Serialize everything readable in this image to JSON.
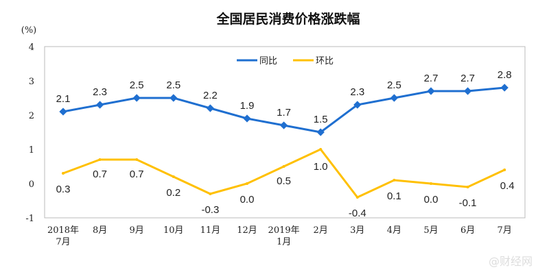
{
  "chart_data": {
    "type": "line",
    "title": "全国居民消费价格涨跌幅",
    "ylabel": "(%)",
    "ylim": [
      -1,
      4
    ],
    "yticks": [
      -1,
      0,
      1,
      2,
      3,
      4
    ],
    "categories": [
      [
        "2018年",
        "7月"
      ],
      [
        "8月"
      ],
      [
        "9月"
      ],
      [
        "10月"
      ],
      [
        "11月"
      ],
      [
        "12月"
      ],
      [
        "2019年",
        "1月"
      ],
      [
        "2月"
      ],
      [
        "3月"
      ],
      [
        "4月"
      ],
      [
        "5月"
      ],
      [
        "6月"
      ],
      [
        "7月"
      ]
    ],
    "series": [
      {
        "name": "同比",
        "color": "#1f6fd0",
        "values": [
          2.1,
          2.3,
          2.5,
          2.5,
          2.2,
          1.9,
          1.7,
          1.5,
          2.3,
          2.5,
          2.7,
          2.7,
          2.8
        ],
        "labels": [
          "2.1",
          "2.3",
          "2.5",
          "2.5",
          "2.2",
          "1.9",
          "1.7",
          "1.5",
          "2.3",
          "2.5",
          "2.7",
          "2.7",
          "2.8"
        ]
      },
      {
        "name": "环比",
        "color": "#ffc000",
        "values": [
          0.3,
          0.7,
          0.7,
          0.2,
          -0.3,
          0.0,
          0.5,
          1.0,
          -0.4,
          0.1,
          0.0,
          -0.1,
          0.4
        ],
        "labels": [
          "0.3",
          "0.7",
          "0.7",
          "0.2",
          "-0.3",
          "0.0",
          "0.5",
          "1.0",
          "-0.4",
          "0.1",
          "0.0",
          "-0.1",
          "0.4"
        ]
      }
    ],
    "legend": "top-center",
    "grid": false
  },
  "watermark": "@财经网"
}
